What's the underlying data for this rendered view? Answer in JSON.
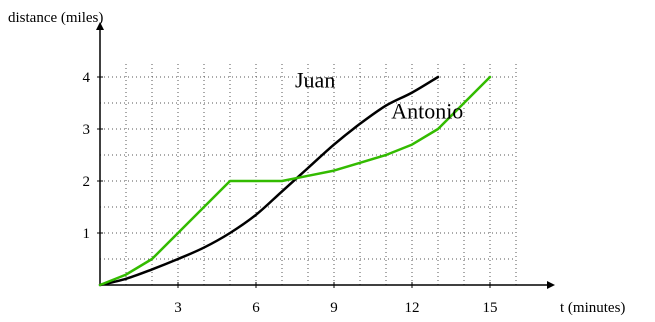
{
  "chart_data": {
    "type": "line",
    "ylabel": "distance (miles)",
    "xlabel": "t (minutes)",
    "xlim": [
      0,
      17
    ],
    "ylim": [
      0,
      4.5
    ],
    "x_ticks": [
      3,
      6,
      9,
      12,
      15
    ],
    "y_ticks": [
      1,
      2,
      3,
      4
    ],
    "grid": true,
    "grid_style": "dotted",
    "x_minor_step": 1,
    "y_minor_step": 0.5,
    "colors": {
      "axis": "#000000",
      "grid": "#555555"
    },
    "series": [
      {
        "name": "Juan",
        "color": "#000000",
        "points": [
          [
            0,
            0
          ],
          [
            1,
            0.12
          ],
          [
            2,
            0.3
          ],
          [
            3,
            0.5
          ],
          [
            4,
            0.72
          ],
          [
            5,
            1.0
          ],
          [
            6,
            1.35
          ],
          [
            7,
            1.8
          ],
          [
            8,
            2.25
          ],
          [
            9,
            2.7
          ],
          [
            10,
            3.1
          ],
          [
            11,
            3.45
          ],
          [
            12,
            3.7
          ],
          [
            13,
            4.0
          ]
        ]
      },
      {
        "name": "Antonio",
        "color": "#33bb00",
        "points": [
          [
            0,
            0
          ],
          [
            1,
            0.2
          ],
          [
            2,
            0.5
          ],
          [
            3,
            1.0
          ],
          [
            4,
            1.5
          ],
          [
            5,
            2.0
          ],
          [
            6,
            2.0
          ],
          [
            7,
            2.0
          ],
          [
            8,
            2.1
          ],
          [
            9,
            2.2
          ],
          [
            10,
            2.35
          ],
          [
            11,
            2.5
          ],
          [
            12,
            2.7
          ],
          [
            13,
            3.0
          ],
          [
            14,
            3.5
          ],
          [
            15,
            4.0
          ]
        ]
      }
    ],
    "annotations": [
      {
        "text": "Juan",
        "x": 7.5,
        "y": 3.8
      },
      {
        "text": "Antonio",
        "x": 11.2,
        "y": 3.2
      }
    ]
  }
}
